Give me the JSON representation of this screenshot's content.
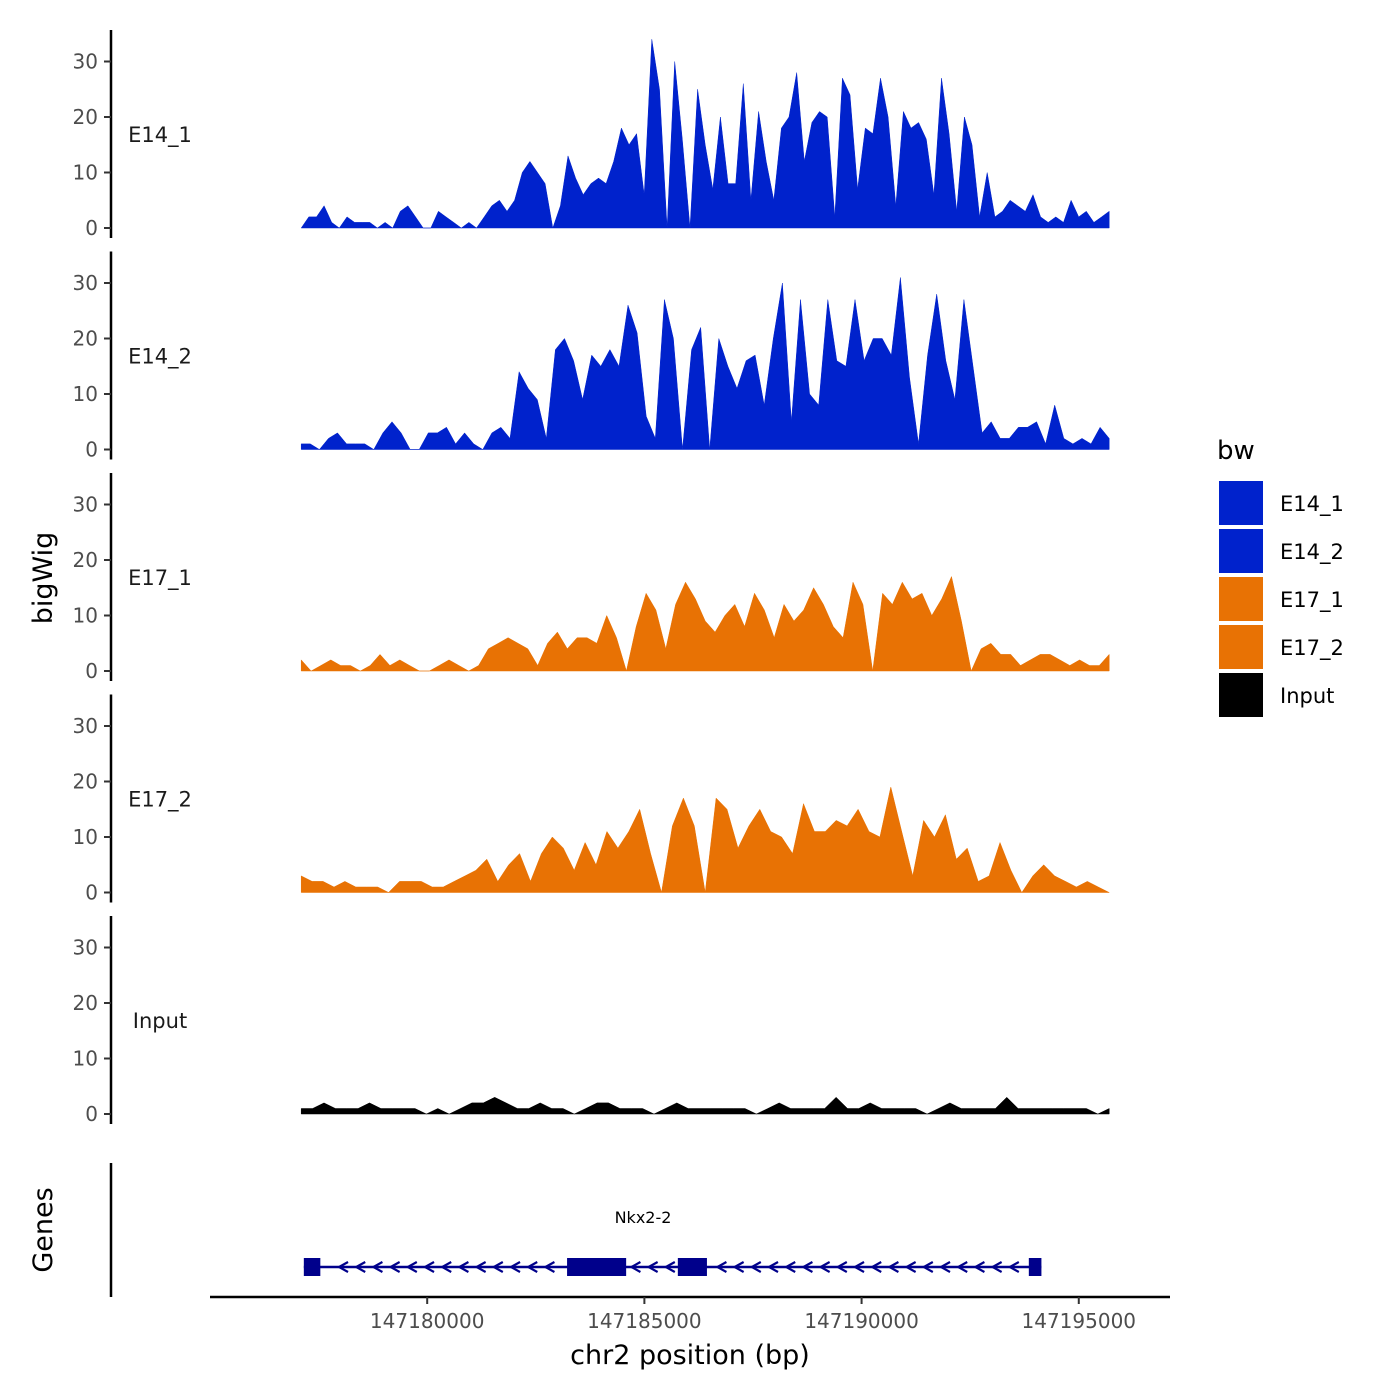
{
  "chart_data": {
    "type": "area",
    "title": "",
    "ylabel": "bigWig",
    "genes_label": "Genes",
    "xlabel": "chr2 position (bp)",
    "xlim": [
      147175000,
      147197100
    ],
    "ylim": [
      0,
      36
    ],
    "x_ticks": [
      147180000,
      147185000,
      147190000,
      147195000
    ],
    "x_tick_labels": [
      "147180000",
      "147185000",
      "147190000",
      "147195000"
    ],
    "y_ticks": [
      0,
      10,
      20,
      30
    ],
    "y_tick_labels": [
      "0",
      "10",
      "20",
      "30"
    ],
    "signal_start": 147177100,
    "signal_end": 147195700,
    "legend": {
      "title": "bw",
      "entries": [
        {
          "label": "E14_1",
          "color": "#0022CC"
        },
        {
          "label": "E14_2",
          "color": "#0022CC"
        },
        {
          "label": "E17_1",
          "color": "#E87204"
        },
        {
          "label": "E17_2",
          "color": "#E87204"
        },
        {
          "label": "Input",
          "color": "#000000"
        }
      ]
    },
    "series": [
      {
        "name": "E14_1",
        "color": "#0022CC",
        "values": [
          0,
          2,
          2,
          4,
          1,
          0,
          2,
          1,
          1,
          1,
          0,
          1,
          0,
          3,
          4,
          2,
          0,
          0,
          3,
          2,
          1,
          0,
          1,
          0,
          2,
          4,
          5,
          3,
          5,
          10,
          12,
          10,
          8,
          0,
          4,
          13,
          9,
          6,
          8,
          9,
          8,
          12,
          18,
          15,
          17,
          6,
          34,
          25,
          0,
          30,
          16,
          0,
          25,
          15,
          7,
          20,
          8,
          8,
          26,
          5,
          21,
          12,
          5,
          18,
          20,
          28,
          12,
          19,
          21,
          20,
          2,
          27,
          24,
          7,
          18,
          17,
          27,
          20,
          4,
          21,
          18,
          19,
          16,
          6,
          27,
          17,
          3,
          20,
          15,
          2,
          10,
          2,
          3,
          5,
          4,
          3,
          6,
          2,
          1,
          2,
          1,
          5,
          2,
          3,
          1,
          2,
          3
        ]
      },
      {
        "name": "E14_2",
        "color": "#0022CC",
        "values": [
          1,
          1,
          0,
          2,
          3,
          1,
          1,
          1,
          0,
          3,
          5,
          3,
          0,
          0,
          3,
          3,
          4,
          1,
          3,
          1,
          0,
          3,
          4,
          2,
          14,
          11,
          9,
          2,
          18,
          20,
          16,
          9,
          17,
          15,
          18,
          15,
          26,
          21,
          6,
          2,
          27,
          20,
          0,
          18,
          22,
          0,
          20,
          15,
          11,
          16,
          17,
          8,
          20,
          30,
          5,
          27,
          10,
          8,
          27,
          16,
          15,
          27,
          16,
          20,
          20,
          17,
          31,
          13,
          1,
          17,
          28,
          16,
          9,
          27,
          15,
          3,
          5,
          2,
          2,
          4,
          4,
          5,
          1,
          8,
          2,
          1,
          2,
          1,
          4,
          2
        ]
      },
      {
        "name": "E17_1",
        "color": "#E87204",
        "values": [
          2,
          0,
          1,
          2,
          1,
          1,
          0,
          1,
          3,
          1,
          2,
          1,
          0,
          0,
          1,
          2,
          1,
          0,
          1,
          4,
          5,
          6,
          5,
          4,
          1,
          5,
          7,
          4,
          6,
          6,
          5,
          10,
          6,
          0,
          8,
          14,
          11,
          4,
          12,
          16,
          13,
          9,
          7,
          10,
          12,
          8,
          14,
          11,
          6,
          12,
          9,
          11,
          15,
          12,
          8,
          6,
          16,
          12,
          0,
          14,
          12,
          16,
          13,
          14,
          10,
          13,
          17,
          9,
          0,
          4,
          5,
          3,
          3,
          1,
          2,
          3,
          3,
          2,
          1,
          2,
          1,
          1,
          3
        ]
      },
      {
        "name": "E17_2",
        "color": "#E87204",
        "values": [
          3,
          2,
          2,
          1,
          2,
          1,
          1,
          1,
          0,
          2,
          2,
          2,
          1,
          1,
          2,
          3,
          4,
          6,
          2,
          5,
          7,
          2,
          7,
          10,
          8,
          4,
          9,
          5,
          11,
          8,
          11,
          15,
          7,
          0,
          12,
          17,
          12,
          0,
          17,
          15,
          8,
          12,
          15,
          11,
          10,
          7,
          16,
          11,
          11,
          13,
          12,
          15,
          11,
          10,
          19,
          11,
          3,
          13,
          10,
          14,
          6,
          8,
          2,
          3,
          9,
          4,
          0,
          3,
          5,
          3,
          2,
          1,
          2,
          1,
          0
        ]
      },
      {
        "name": "Input",
        "color": "#000000",
        "values": [
          1,
          1,
          2,
          1,
          1,
          1,
          2,
          1,
          1,
          1,
          1,
          0,
          1,
          0,
          1,
          2,
          2,
          3,
          2,
          1,
          1,
          2,
          1,
          1,
          0,
          1,
          2,
          2,
          1,
          1,
          1,
          0,
          1,
          2,
          1,
          1,
          1,
          1,
          1,
          1,
          0,
          1,
          2,
          1,
          1,
          1,
          1,
          3,
          1,
          1,
          2,
          1,
          1,
          1,
          1,
          0,
          1,
          2,
          1,
          1,
          1,
          1,
          3,
          1,
          1,
          1,
          1,
          1,
          1,
          1,
          0,
          1
        ]
      }
    ],
    "genes": [
      {
        "name": "Nkx2-2",
        "start": 147177160,
        "end": 147194140,
        "strand": "-",
        "exons": [
          {
            "start": 147177160,
            "end": 147177540
          },
          {
            "start": 147183220,
            "end": 147184580
          },
          {
            "start": 147185770,
            "end": 147186440
          },
          {
            "start": 147193850,
            "end": 147194140
          }
        ]
      }
    ]
  }
}
